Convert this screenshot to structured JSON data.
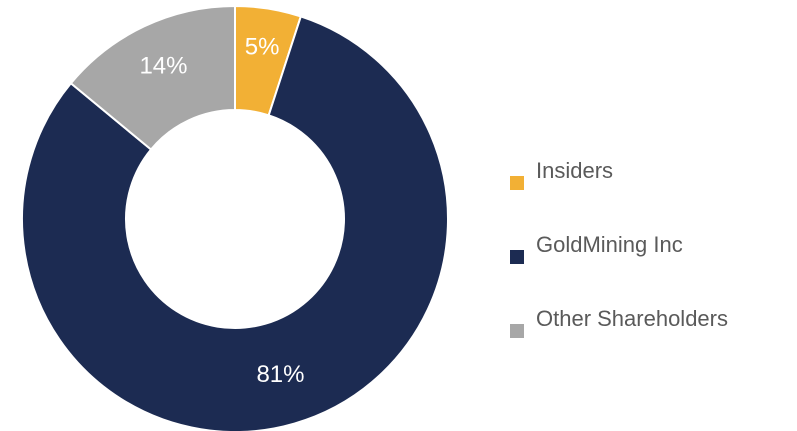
{
  "chart_data": {
    "type": "pie",
    "variant": "donut",
    "categories": [
      "Insiders",
      "GoldMining Inc",
      "Other Shareholders"
    ],
    "values": [
      5,
      81,
      14
    ],
    "data_labels": [
      "5%",
      "81%",
      "14%"
    ],
    "colors": [
      "#f2b035",
      "#1c2b52",
      "#a7a7a7"
    ],
    "legend_position": "right"
  },
  "legend": {
    "items": [
      {
        "label": "Insiders",
        "color": "#f2b035"
      },
      {
        "label": "GoldMining Inc",
        "color": "#1c2b52"
      },
      {
        "label": "Other Shareholders",
        "color": "#a7a7a7"
      }
    ]
  }
}
